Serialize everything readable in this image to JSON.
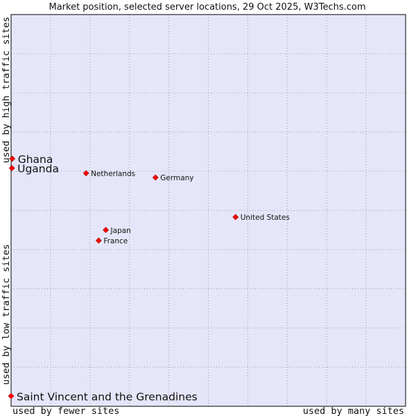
{
  "chart_data": {
    "type": "scatter",
    "title": "Market position, selected server locations, 29 Oct 2025, W3Techs.com",
    "xlabel_low": "used by fewer sites",
    "xlabel_high": "used by many sites",
    "ylabel_low": "used by low traffic sites",
    "ylabel_high": "used by high traffic sites",
    "xlim": [
      0,
      100
    ],
    "ylim": [
      0,
      100
    ],
    "grid": true,
    "colors": {
      "background": "#e6e6fa",
      "grid": "#9999aa",
      "point": "#ff0000",
      "point_outline": "#990000",
      "axis": "#000000"
    },
    "points": [
      {
        "label": "Ghana",
        "x": 0.3,
        "y": 63.2,
        "emphasis": true
      },
      {
        "label": "Uganda",
        "x": 0.2,
        "y": 60.8,
        "emphasis": true
      },
      {
        "label": "Netherlands",
        "x": 19.0,
        "y": 59.5,
        "emphasis": false
      },
      {
        "label": "Germany",
        "x": 36.6,
        "y": 58.4,
        "emphasis": false
      },
      {
        "label": "United States",
        "x": 56.9,
        "y": 48.3,
        "emphasis": false
      },
      {
        "label": "Japan",
        "x": 24.0,
        "y": 45.0,
        "emphasis": false
      },
      {
        "label": "France",
        "x": 22.2,
        "y": 42.3,
        "emphasis": false
      },
      {
        "label": "Saint Vincent and the Grenadines",
        "x": 0.0,
        "y": 2.6,
        "emphasis": true
      }
    ]
  }
}
